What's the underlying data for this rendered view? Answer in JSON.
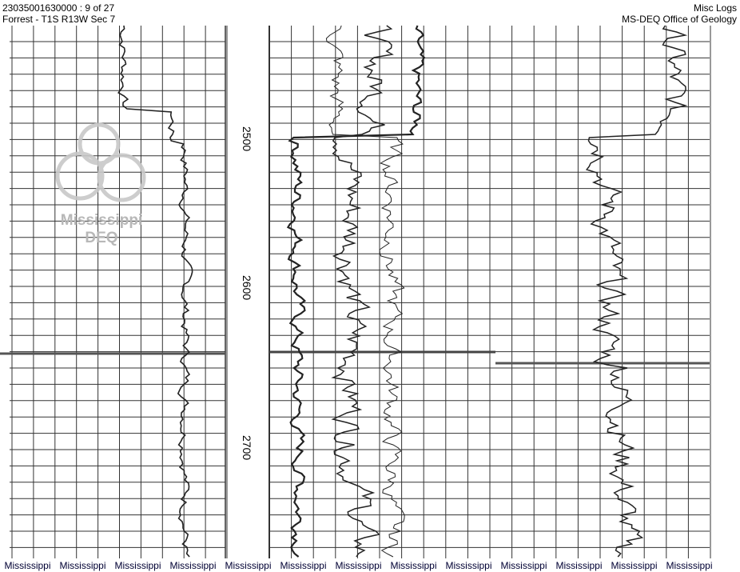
{
  "header": {
    "well_id": "23035001630000 : 9 of 27",
    "location": "Forrest - T1S R13W Sec 7",
    "log_type": "Misc Logs",
    "agency": "MS-DEQ Office of Geology"
  },
  "depth_labels": [
    "2500",
    "2600",
    "2700"
  ],
  "watermark": {
    "line1": "Mississippi",
    "line2": "DEQ"
  },
  "footer_repeat": [
    "Mississippi",
    "Mississippi",
    "Mississippi",
    "Mississippi",
    "Mississippi",
    "Mississippi",
    "Mississippi",
    "Mississippi",
    "Mississippi",
    "Mississippi",
    "Mississippi",
    "Mississippi",
    "Mississippi"
  ],
  "colors": {
    "grid": "#333333",
    "watermark": "#b8b8b8",
    "footer_text": "#000033"
  }
}
